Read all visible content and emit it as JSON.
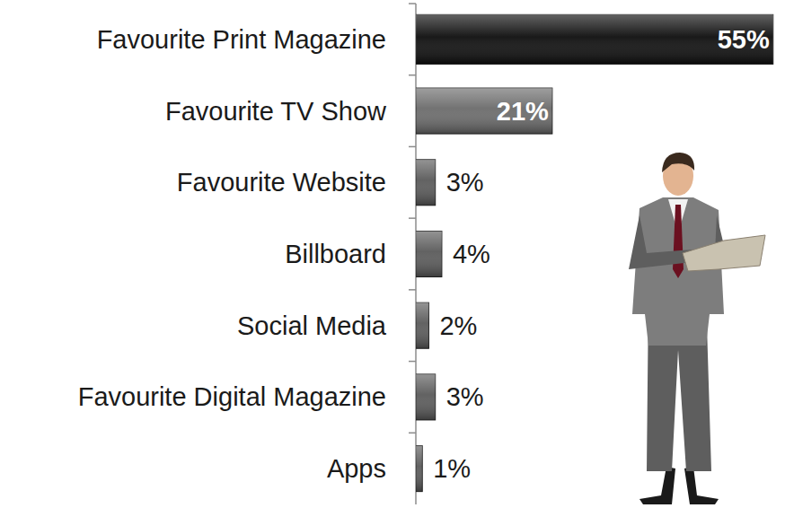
{
  "chart_data": {
    "type": "bar",
    "orientation": "horizontal",
    "categories": [
      "Favourite Print Magazine",
      "Favourite TV Show",
      "Favourite Website",
      "Billboard",
      "Social Media",
      "Favourite Digital Magazine",
      "Apps"
    ],
    "values": [
      55,
      21,
      3,
      4,
      2,
      3,
      1
    ],
    "value_labels": [
      "55%",
      "21%",
      "3%",
      "4%",
      "2%",
      "3%",
      "1%"
    ],
    "colors": [
      "#0d0d0d",
      "#6b6b6b",
      "#5a5a5a",
      "#5a5a5a",
      "#5a5a5a",
      "#5a5a5a",
      "#5a5a5a"
    ],
    "xlim": [
      0,
      56
    ],
    "data_labels": true,
    "tick_labels": "y",
    "grid": false
  }
}
